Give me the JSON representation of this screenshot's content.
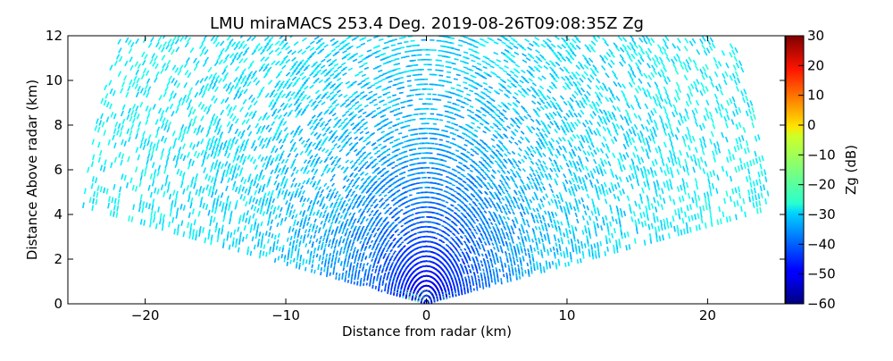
{
  "chart_data": {
    "type": "heatmap",
    "title": "LMU miraMACS 253.4 Deg. 2019-08-26T09:08:35Z  Zg",
    "xlabel": "Distance from radar (km)",
    "ylabel": "Distance Above radar  (km)",
    "xlim": [
      -25.5,
      25.5
    ],
    "ylim": [
      0,
      12
    ],
    "xticks": [
      -20,
      -10,
      0,
      10,
      20
    ],
    "xtick_labels": [
      "−20",
      "−10",
      "0",
      "10",
      "20"
    ],
    "yticks": [
      0,
      2,
      4,
      6,
      8,
      10,
      12
    ],
    "ytick_labels": [
      "0",
      "2",
      "4",
      "6",
      "8",
      "10",
      "12"
    ],
    "grid": false,
    "scan": {
      "pattern": "RHI",
      "azimuth_deg": 253.4,
      "max_range_km": 25,
      "elevation_start_deg": 10,
      "elevation_end_deg": 170
    },
    "colorbar": {
      "label": "Zg (dB)",
      "range": [
        -60,
        30
      ],
      "ticks": [
        30,
        20,
        10,
        0,
        -10,
        -20,
        -30,
        -40,
        -50,
        -60
      ],
      "tick_labels": [
        "30",
        "20",
        "10",
        "0",
        "−10",
        "−20",
        "−30",
        "−40",
        "−50",
        "−60"
      ],
      "colormap": "jet"
    },
    "reflectivity_profile_dB": {
      "description_levels": [
        {
          "range_km": 0.5,
          "Zg": -52
        },
        {
          "range_km": 2,
          "Zg": -45
        },
        {
          "range_km": 5,
          "Zg": -38
        },
        {
          "range_km": 8,
          "Zg": -33
        },
        {
          "range_km": 12,
          "Zg": -30
        },
        {
          "range_km": 20,
          "Zg": -27
        }
      ]
    }
  }
}
